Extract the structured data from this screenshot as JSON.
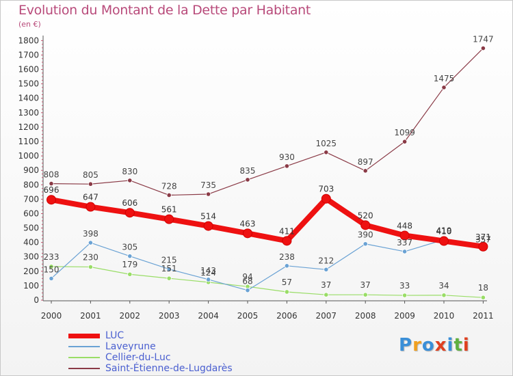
{
  "title": "Evolution du Montant de la Dette par Habitant",
  "subtitle": "(en €)",
  "chart_data": {
    "type": "line",
    "title": "Evolution du Montant de la Dette par Habitant",
    "subtitle": "(en €)",
    "xlabel": "",
    "ylabel": "",
    "ylim": [
      0,
      1800
    ],
    "ytick_step": 100,
    "grid": false,
    "legend_position": "bottom-left",
    "x": [
      "2000",
      "2001",
      "2002",
      "2003",
      "2004",
      "2005",
      "2006",
      "2007",
      "2008",
      "2009",
      "2010",
      "2011"
    ],
    "series": [
      {
        "name": "LUC",
        "values": [
          696,
          647,
          606,
          561,
          514,
          463,
          411,
          703,
          520,
          448,
          410,
          371
        ],
        "color": "#ee1111"
      },
      {
        "name": "Laveyrune",
        "values": [
          150,
          398,
          305,
          215,
          143,
          68,
          238,
          212,
          390,
          337,
          419,
          357
        ],
        "color": "#6aa2d4"
      },
      {
        "name": "Cellier-du-Luc",
        "values": [
          233,
          230,
          179,
          151,
          124,
          94,
          57,
          37,
          37,
          33,
          34,
          18
        ],
        "color": "#99dd66"
      },
      {
        "name": "Saint-Étienne-de-Lugdarès",
        "values": [
          808,
          805,
          830,
          728,
          735,
          835,
          930,
          1025,
          897,
          1099,
          1475,
          1747
        ],
        "color": "#8a3a46"
      }
    ]
  },
  "logo": {
    "letters": [
      "P",
      "r",
      "o",
      "x",
      "i",
      "t",
      "i"
    ],
    "colors": [
      "#3a8fd8",
      "#f0a020",
      "#3a8fd8",
      "#e04020",
      "#3a8fd8",
      "#60b040",
      "#e04020"
    ]
  }
}
